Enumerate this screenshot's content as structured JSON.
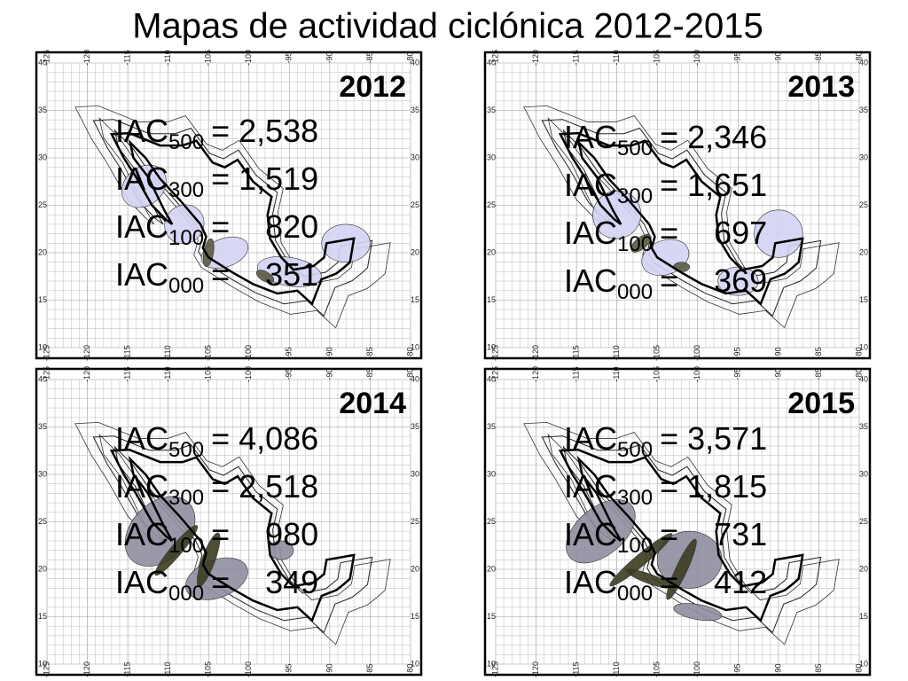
{
  "title": "Mapas de actividad ciclónica 2012-2015",
  "lon_labels": [
    "-125",
    "-120",
    "-115",
    "-110",
    "-105",
    "-100",
    "-95",
    "-90",
    "-85",
    "-80"
  ],
  "lat_labels": [
    "40",
    "35",
    "30",
    "25",
    "20",
    "15",
    "10"
  ],
  "index_name": "IAC",
  "panels": [
    {
      "year": "2012",
      "lines": [
        {
          "sub": "500",
          "value": "= 2,538"
        },
        {
          "sub": "300",
          "value": "= 1,519"
        },
        {
          "sub": "100",
          "value": "=    820"
        },
        {
          "sub": "000",
          "value": "=    351"
        }
      ]
    },
    {
      "year": "2013",
      "lines": [
        {
          "sub": "500",
          "value": "= 2,346"
        },
        {
          "sub": "300",
          "value": "= 1,651"
        },
        {
          "sub": "100",
          "value": "=    697"
        },
        {
          "sub": "000",
          "value": "=    369"
        }
      ]
    },
    {
      "year": "2014",
      "lines": [
        {
          "sub": "500",
          "value": "= 4,086"
        },
        {
          "sub": "300",
          "value": "= 2,518"
        },
        {
          "sub": "100",
          "value": "=    980"
        },
        {
          "sub": "000",
          "value": "=    349"
        }
      ]
    },
    {
      "year": "2015",
      "lines": [
        {
          "sub": "500",
          "value": "= 3,571"
        },
        {
          "sub": "300",
          "value": "= 1,815"
        },
        {
          "sub": "100",
          "value": "=    731"
        },
        {
          "sub": "000",
          "value": "=    412"
        }
      ]
    }
  ]
}
